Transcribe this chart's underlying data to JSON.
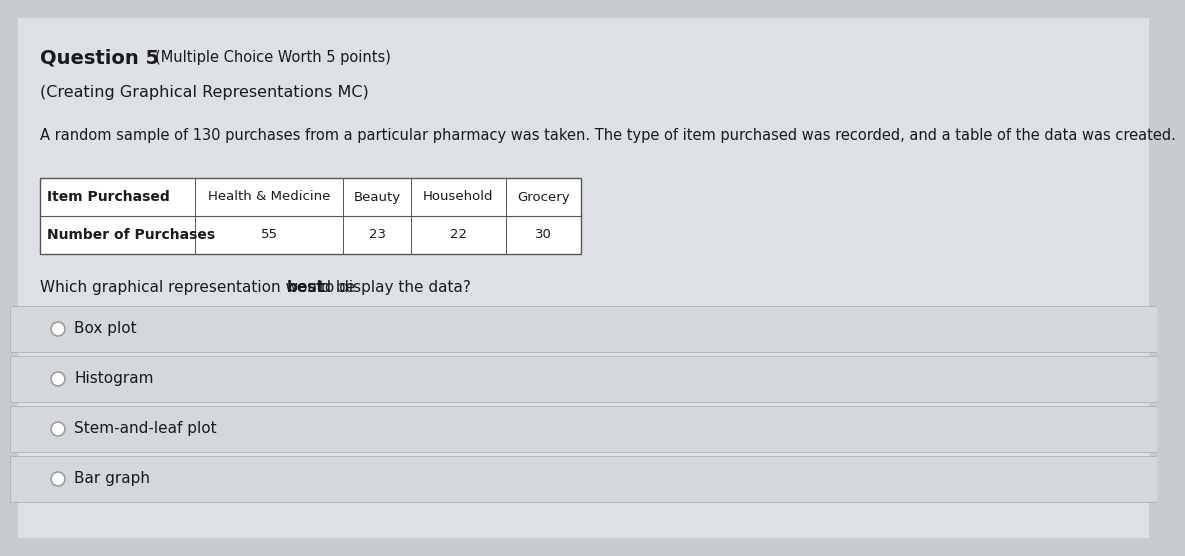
{
  "bg_color": "#c8ccd0",
  "white_panel_color": "#dde0e4",
  "title_bold": "Question 5",
  "title_small": "(Multiple Choice Worth 5 points)",
  "subtitle": "(Creating Graphical Representations MC)",
  "body_text": "A random sample of 130 purchases from a particular pharmacy was taken. The type of item purchased was recorded, and a table of the data was created.",
  "table_headers": [
    "Item Purchased",
    "Health & Medicine",
    "Beauty",
    "Household",
    "Grocery"
  ],
  "table_row2_label": "Number of Purchases",
  "table_row2_values": [
    "55",
    "23",
    "22",
    "30"
  ],
  "q_pre": "Which graphical representation would be ",
  "q_bold": "best",
  "q_post": " to display the data?",
  "choices": [
    "Box plot",
    "Histogram",
    "Stem-and-leaf plot",
    "Bar graph"
  ],
  "table_bg": "#ffffff",
  "table_border": "#555555",
  "choice_bg": "#d4d7db",
  "choice_border": "#aaaaaa",
  "text_color": "#1a1a1a",
  "radio_color": "#999999"
}
